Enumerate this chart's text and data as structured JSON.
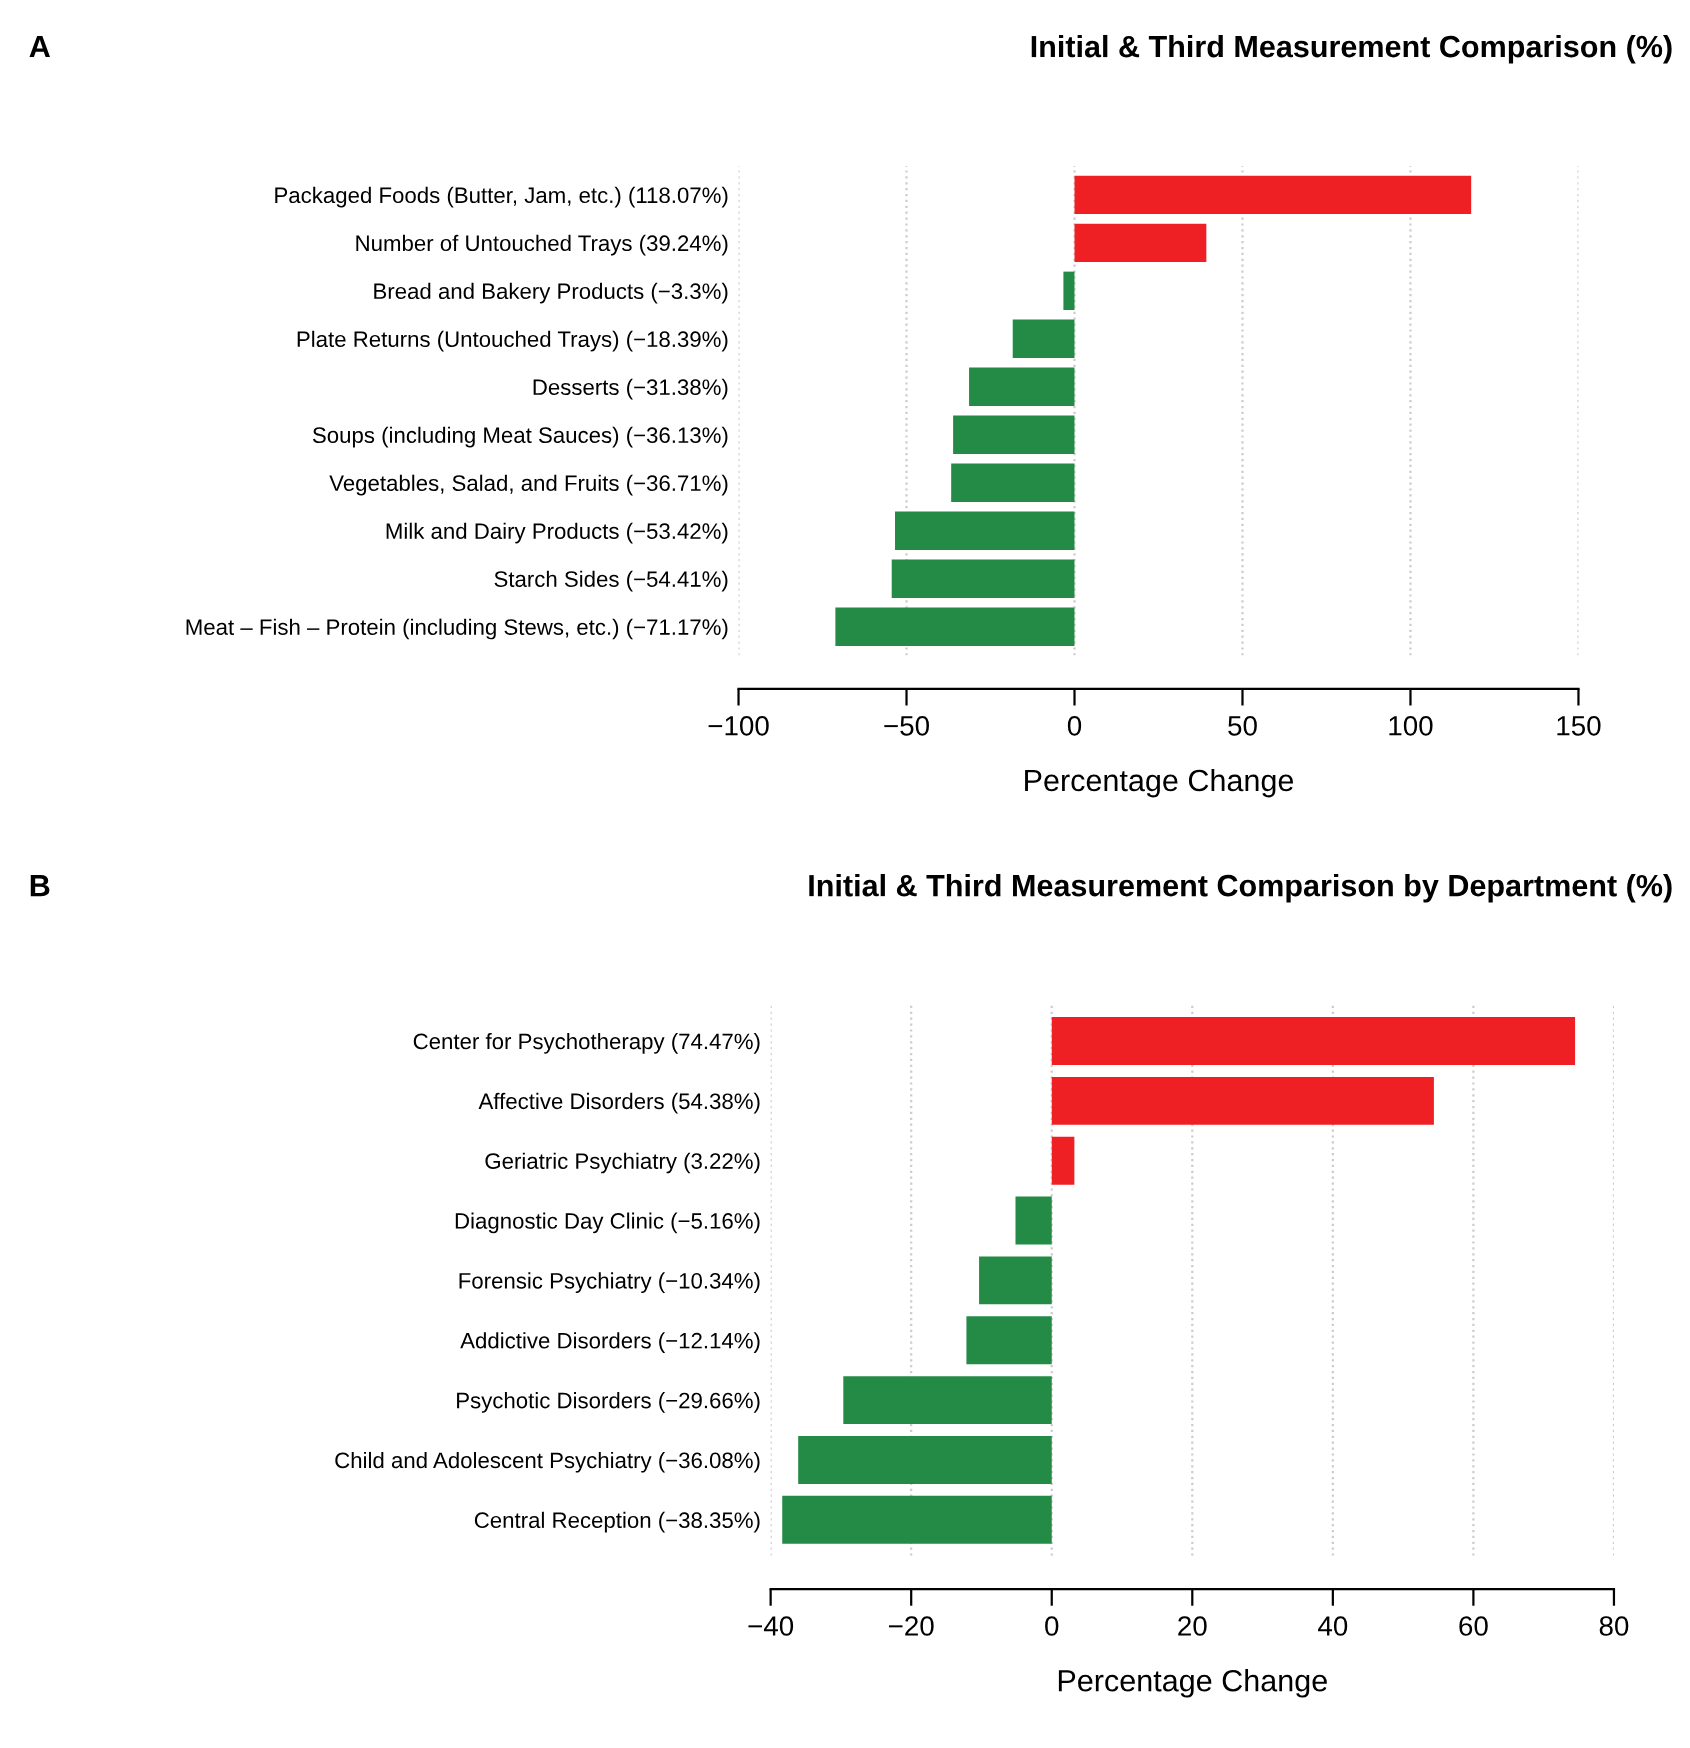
{
  "chart_data": [
    {
      "type": "bar",
      "orientation": "horizontal",
      "title": "Initial & Third Measurement Comparison (%)",
      "xlabel": "Percentage Change",
      "annotations": [
        "A"
      ],
      "categories": [
        "Packaged Foods (Butter, Jam, etc.) (118.07%)",
        "Number of Untouched Trays (39.24%)",
        "Bread and Bakery Products (−3.3%)",
        "Plate Returns (Untouched Trays) (−18.39%)",
        "Desserts (−31.38%)",
        "Soups (including Meat Sauces) (−36.13%)",
        "Vegetables, Salad, and Fruits (−36.71%)",
        "Milk and Dairy Products (−53.42%)",
        "Starch Sides (−54.41%)",
        "Meat – Fish – Protein (including Stews, etc.) (−71.17%)"
      ],
      "values": [
        118.07,
        39.24,
        -3.3,
        -18.39,
        -31.38,
        -36.13,
        -36.71,
        -53.42,
        -54.41,
        -71.17
      ],
      "colors": [
        "#ee2024",
        "#ee2024",
        "#238b45",
        "#238b45",
        "#238b45",
        "#238b45",
        "#238b45",
        "#238b45",
        "#238b45",
        "#238b45"
      ],
      "xlim": [
        -100,
        150
      ],
      "xticks": [
        {
          "value": -100,
          "label": "−100"
        },
        {
          "value": -50,
          "label": "−50"
        },
        0,
        50,
        100,
        150
      ],
      "grid": "x"
    },
    {
      "type": "bar",
      "orientation": "horizontal",
      "title": "Initial & Third Measurement Comparison by Department (%)",
      "xlabel": "Percentage Change",
      "annotations": [
        "B"
      ],
      "categories": [
        "Center for Psychotherapy (74.47%)",
        "Affective Disorders (54.38%)",
        "Geriatric Psychiatry (3.22%)",
        "Diagnostic Day Clinic (−5.16%)",
        "Forensic Psychiatry (−10.34%)",
        "Addictive Disorders (−12.14%)",
        "Psychotic Disorders (−29.66%)",
        "Child and Adolescent Psychiatry (−36.08%)",
        "Central Reception (−38.35%)"
      ],
      "values": [
        74.47,
        54.38,
        3.22,
        -5.16,
        -10.34,
        -12.14,
        -29.66,
        -36.08,
        -38.35
      ],
      "colors": [
        "#ee2024",
        "#ee2024",
        "#ee2024",
        "#238b45",
        "#238b45",
        "#238b45",
        "#238b45",
        "#238b45",
        "#238b45"
      ],
      "xlim": [
        -40,
        80
      ],
      "xticks": [
        {
          "value": -40,
          "label": "−40"
        },
        {
          "value": -20,
          "label": "−20"
        },
        0,
        20,
        40,
        60,
        80
      ],
      "grid": "x"
    }
  ]
}
